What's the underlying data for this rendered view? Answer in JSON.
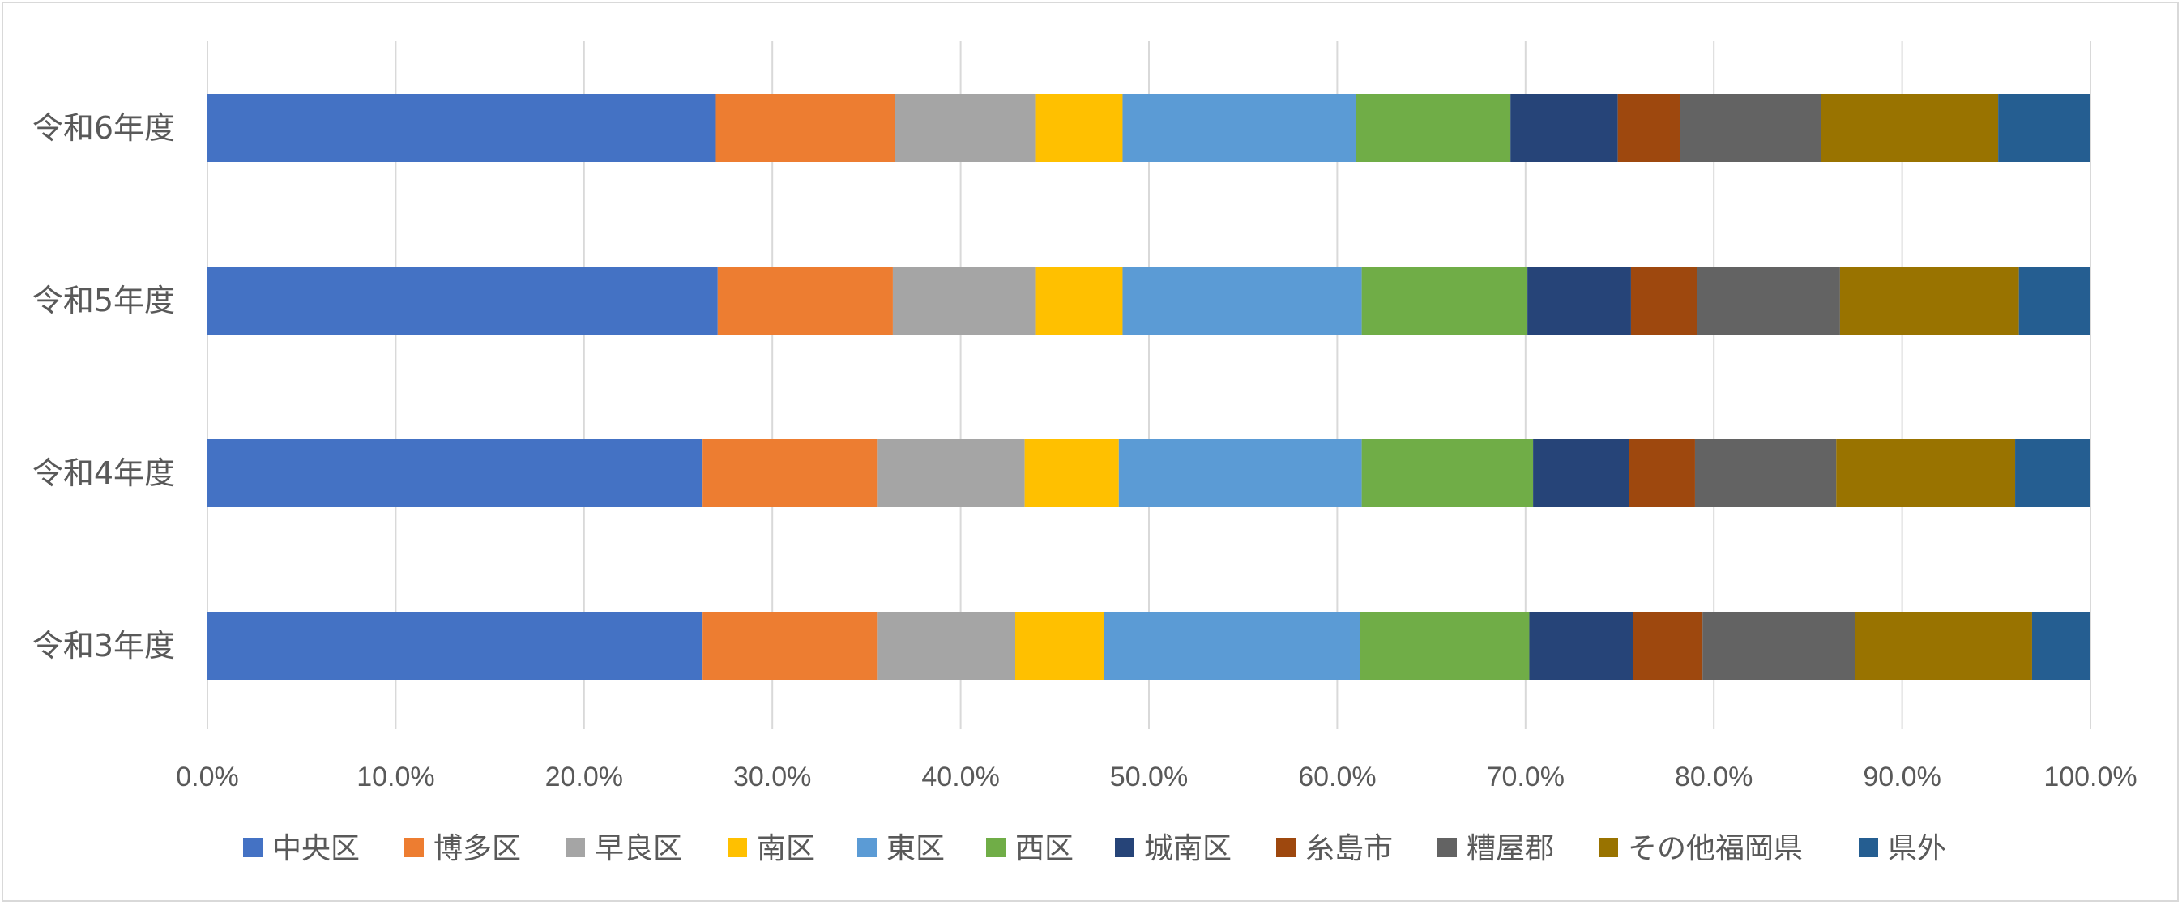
{
  "chart_data": {
    "type": "bar",
    "orientation": "horizontal",
    "stacked": "percent",
    "categories": [
      "令和6年度",
      "令和5年度",
      "令和4年度",
      "令和3年度"
    ],
    "xlim": [
      0,
      100
    ],
    "x_ticks": [
      0,
      10,
      20,
      30,
      40,
      50,
      60,
      70,
      80,
      90,
      100
    ],
    "x_tick_labels": [
      "0.0%",
      "10.0%",
      "20.0%",
      "30.0%",
      "40.0%",
      "50.0%",
      "60.0%",
      "70.0%",
      "80.0%",
      "90.0%",
      "100.0%"
    ],
    "grid": "vertical",
    "legend": "bottom",
    "series": [
      {
        "name": "中央区",
        "color": "#4472C4",
        "values": [
          27.0,
          27.1,
          26.3,
          26.3
        ]
      },
      {
        "name": "博多区",
        "color": "#ED7D31",
        "values": [
          9.5,
          9.3,
          9.3,
          9.3
        ]
      },
      {
        "name": "早良区",
        "color": "#A5A5A5",
        "values": [
          7.5,
          7.6,
          7.8,
          7.3
        ]
      },
      {
        "name": "南区",
        "color": "#FFC000",
        "values": [
          4.6,
          4.6,
          5.0,
          4.7
        ]
      },
      {
        "name": "東区",
        "color": "#5B9BD5",
        "values": [
          12.4,
          12.7,
          12.9,
          13.6
        ]
      },
      {
        "name": "西区",
        "color": "#70AD47",
        "values": [
          8.2,
          8.8,
          9.1,
          9.0
        ]
      },
      {
        "name": "城南区",
        "color": "#264478",
        "values": [
          5.7,
          5.5,
          5.1,
          5.5
        ]
      },
      {
        "name": "糸島市",
        "color": "#9E480E",
        "values": [
          3.3,
          3.5,
          3.5,
          3.7
        ]
      },
      {
        "name": "糟屋郡",
        "color": "#636363",
        "values": [
          7.5,
          7.6,
          7.5,
          8.1
        ]
      },
      {
        "name": "その他福岡県",
        "color": "#997300",
        "values": [
          9.4,
          9.5,
          9.5,
          9.4
        ]
      },
      {
        "name": "県外",
        "color": "#255E91",
        "values": [
          4.9,
          3.8,
          4.0,
          3.1
        ]
      }
    ]
  }
}
